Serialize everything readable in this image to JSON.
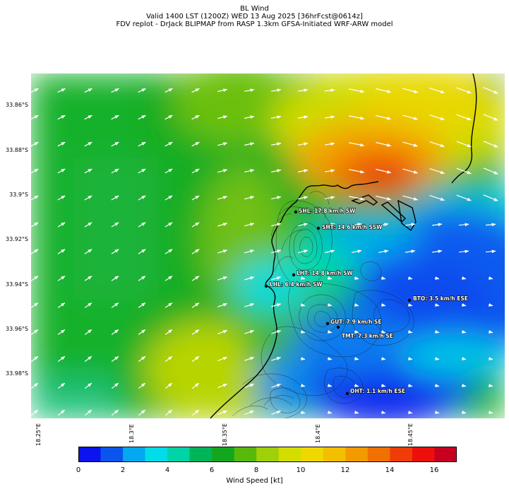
{
  "title": {
    "line1": "BL Wind",
    "line2": "Valid 1400 LST (1200Z) WED 13 Aug 2025 [36hrFcst@0614z]",
    "line3": "FDV replot - DrJack BLIPMAP from RASP 1.3km GFSA-Initiated WRF-ARW model"
  },
  "map": {
    "lat_ticks": [
      "33.86°S",
      "33.88°S",
      "33.9°S",
      "33.92°S",
      "33.94°S",
      "33.96°S",
      "33.98°S"
    ],
    "lon_ticks": [
      "18.25°E",
      "18.3°E",
      "18.35°E",
      "18.4°E",
      "18.45°E"
    ],
    "stations": [
      {
        "code": "SHL",
        "label": "SHL: 17.8 km/h SW"
      },
      {
        "code": "SHT",
        "label": "SHT: 14.6 km/h SSW"
      },
      {
        "code": "LHT",
        "label": "LHT: 14.8 km/h SW"
      },
      {
        "code": "LHL",
        "label": "LHL: 6.4 km/h SW"
      },
      {
        "code": "BTO",
        "label": "BTO: 3.5 km/h ESE"
      },
      {
        "code": "GUT",
        "label": "GUT: 7.9 km/h SE"
      },
      {
        "code": "TMT",
        "label": "TMT: 7.3 km/h SE"
      },
      {
        "code": "OHT",
        "label": "OHT: 1.1 km/h ESE"
      }
    ]
  },
  "colorbar": {
    "label": "Wind Speed [kt]",
    "ticks": [
      "0",
      "2",
      "4",
      "6",
      "8",
      "10",
      "12",
      "14",
      "16"
    ],
    "range": [
      0,
      17
    ],
    "colors": [
      "#0b13ee",
      "#0a55ee",
      "#04a8f0",
      "#00dde8",
      "#00d3a5",
      "#00b45a",
      "#12a61e",
      "#58b80c",
      "#9fd008",
      "#d4dd00",
      "#efd800",
      "#f3bf00",
      "#f29a00",
      "#f07000",
      "#ee3d08",
      "#ec0f0c",
      "#c70020"
    ]
  }
}
